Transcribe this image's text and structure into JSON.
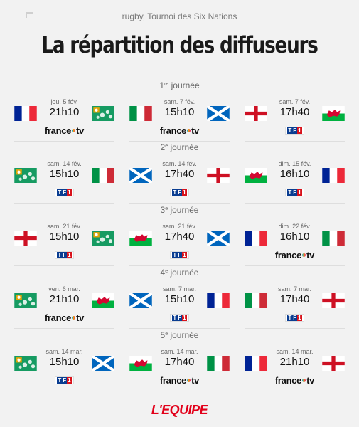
{
  "header": {
    "subtitle": "rugby, Tournoi des Six Nations",
    "title": "La répartition des diffuseurs"
  },
  "footer": {
    "logo_text": "L'EQUIPE"
  },
  "rounds": [
    {
      "num": "1",
      "sup": "re",
      "word": " journée",
      "matches": [
        {
          "home": "france",
          "away": "ireland",
          "date": "jeu. 5 fév.",
          "time": "21h10",
          "broadcaster": "france.tv"
        },
        {
          "home": "italy",
          "away": "scotland",
          "date": "sam. 7 fév.",
          "time": "15h10",
          "broadcaster": "france.tv"
        },
        {
          "home": "england",
          "away": "wales",
          "date": "sam. 7 fév.",
          "time": "17h40",
          "broadcaster": "TF1"
        }
      ]
    },
    {
      "num": "2",
      "sup": "e",
      "word": " journée",
      "matches": [
        {
          "home": "ireland",
          "away": "italy",
          "date": "sam. 14 fév.",
          "time": "15h10",
          "broadcaster": "TF1"
        },
        {
          "home": "scotland",
          "away": "england",
          "date": "sam. 14 fév.",
          "time": "17h40",
          "broadcaster": "TF1"
        },
        {
          "home": "wales",
          "away": "france",
          "date": "dim. 15 fév.",
          "time": "16h10",
          "broadcaster": "TF1"
        }
      ]
    },
    {
      "num": "3",
      "sup": "e",
      "word": " journée",
      "matches": [
        {
          "home": "england",
          "away": "ireland",
          "date": "sam. 21 fév.",
          "time": "15h10",
          "broadcaster": "TF1"
        },
        {
          "home": "wales",
          "away": "scotland",
          "date": "sam. 21 fév.",
          "time": "17h40",
          "broadcaster": "TF1"
        },
        {
          "home": "france",
          "away": "italy",
          "date": "dim. 22 fév.",
          "time": "16h10",
          "broadcaster": "france.tv"
        }
      ]
    },
    {
      "num": "4",
      "sup": "e",
      "word": " journée",
      "matches": [
        {
          "home": "ireland",
          "away": "wales",
          "date": "ven. 6 mar.",
          "time": "21h10",
          "broadcaster": "france.tv"
        },
        {
          "home": "scotland",
          "away": "france",
          "date": "sam. 7 mar.",
          "time": "15h10",
          "broadcaster": "TF1"
        },
        {
          "home": "italy",
          "away": "england",
          "date": "sam. 7 mar.",
          "time": "17h40",
          "broadcaster": "TF1"
        }
      ]
    },
    {
      "num": "5",
      "sup": "e",
      "word": " journée",
      "matches": [
        {
          "home": "ireland",
          "away": "scotland",
          "date": "sam. 14 mar.",
          "time": "15h10",
          "broadcaster": "TF1"
        },
        {
          "home": "wales",
          "away": "italy",
          "date": "sam. 14 mar.",
          "time": "17h40",
          "broadcaster": "france.tv"
        },
        {
          "home": "france",
          "away": "england",
          "date": "sam. 14 mar.",
          "time": "21h10",
          "broadcaster": "france.tv"
        }
      ]
    }
  ]
}
